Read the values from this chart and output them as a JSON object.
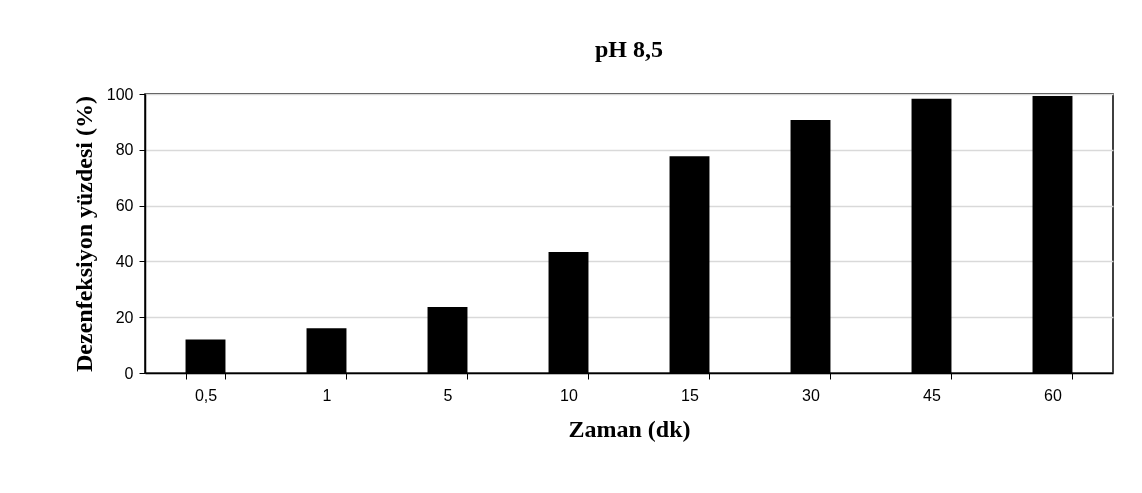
{
  "chart_data": {
    "type": "bar",
    "title": "pH 8,5",
    "xlabel": "Zaman (dk)",
    "ylabel": "Dezenfeksiyon yüzdesi (%)",
    "categories": [
      "0,5",
      "1",
      "5",
      "10",
      "15",
      "30",
      "45",
      "60"
    ],
    "values": [
      12,
      16,
      23.7,
      43.4,
      77.7,
      90.7,
      98.3,
      99.3
    ],
    "color": "#000000",
    "ylim": [
      0,
      100
    ],
    "yticks": [
      0,
      20,
      40,
      60,
      80,
      100
    ],
    "grid": "y"
  }
}
